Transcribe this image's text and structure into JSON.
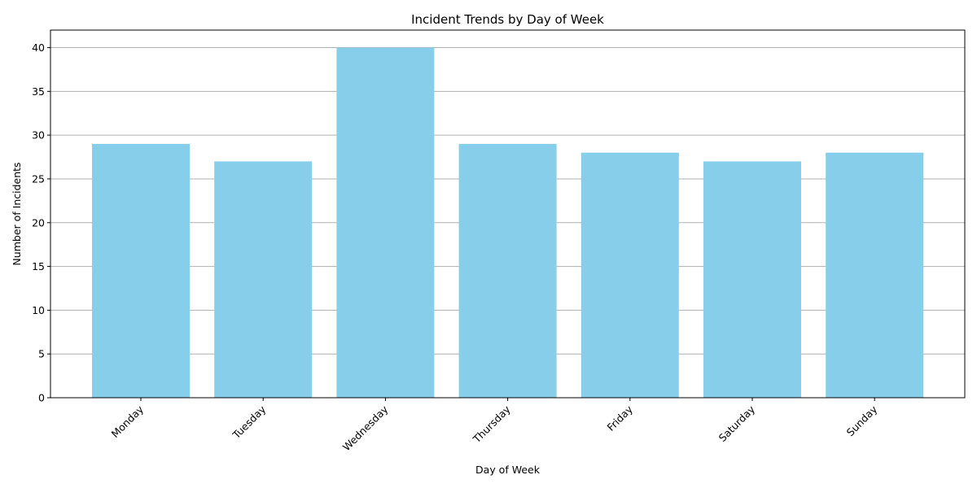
{
  "chart_data": {
    "type": "bar",
    "title": "Incident Trends by Day of Week",
    "xlabel": "Day of Week",
    "ylabel": "Number of Incidents",
    "categories": [
      "Monday",
      "Tuesday",
      "Wednesday",
      "Thursday",
      "Friday",
      "Saturday",
      "Sunday"
    ],
    "values": [
      29,
      27,
      40,
      29,
      28,
      27,
      28
    ],
    "ylim": [
      0,
      42
    ],
    "yticks": [
      0,
      5,
      10,
      15,
      20,
      25,
      30,
      35,
      40
    ],
    "grid": "y-major",
    "legend": "none",
    "bar_color": "#87CEEB",
    "grid_color": "#b0b0b0",
    "xtick_rotation_deg": 45
  }
}
